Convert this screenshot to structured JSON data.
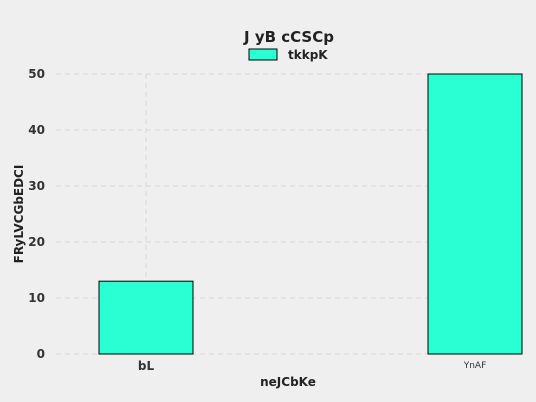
{
  "chart_data": {
    "type": "bar",
    "title": "J yB cCSCp",
    "xlabel": "neJCbKe",
    "ylabel": "FRyLVCGbEDCI",
    "categories": [
      "bL",
      "YnAF"
    ],
    "series": [
      {
        "name": "tkkpK",
        "values": [
          13,
          50
        ]
      }
    ],
    "ylim": [
      0,
      50
    ],
    "yticks": [
      0,
      10,
      20,
      30,
      40,
      50
    ],
    "grid": true,
    "legend": "top-center",
    "colors": {
      "bar": "#29ffd3",
      "bar_edge": "#000000",
      "background": "#efefef",
      "grid": "#d9d9d9"
    }
  }
}
